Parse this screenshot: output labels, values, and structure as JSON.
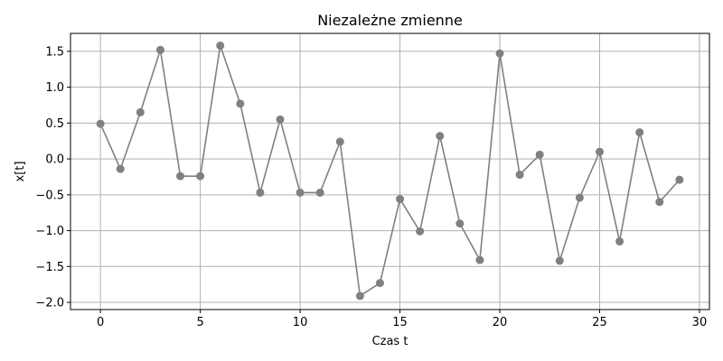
{
  "chart_data": {
    "type": "line",
    "title": "Niezależne zmienne",
    "xlabel": "Czas t",
    "ylabel": "x[t]",
    "xlim": [
      -1.5,
      30.5
    ],
    "ylim": [
      -2.1,
      1.75
    ],
    "grid": true,
    "x_ticks": [
      0,
      5,
      10,
      15,
      20,
      25,
      30
    ],
    "x_tick_labels": [
      "0",
      "5",
      "10",
      "15",
      "20",
      "25",
      "30"
    ],
    "y_ticks": [
      1.5,
      1.0,
      0.5,
      0.0,
      -0.5,
      -1.0,
      -1.5,
      -2.0
    ],
    "y_tick_labels": [
      "1.5",
      "1.0",
      "0.5",
      "0.0",
      "−0.5",
      "−1.0",
      "−1.5",
      "−2.0"
    ],
    "series": [
      {
        "color": "#808080",
        "marker": "circle",
        "x": [
          0,
          1,
          2,
          3,
          4,
          5,
          6,
          7,
          8,
          9,
          10,
          11,
          12,
          13,
          14,
          15,
          16,
          17,
          18,
          19,
          20,
          21,
          22,
          23,
          24,
          25,
          26,
          27,
          28,
          29
        ],
        "y": [
          0.49,
          -0.14,
          0.65,
          1.52,
          -0.24,
          -0.24,
          1.58,
          0.77,
          -0.47,
          0.55,
          -0.47,
          -0.47,
          0.24,
          -1.91,
          -1.73,
          -0.56,
          -1.01,
          0.32,
          -0.9,
          -1.41,
          1.47,
          -0.22,
          0.06,
          -1.42,
          -0.54,
          0.1,
          -1.15,
          0.37,
          -0.6,
          -0.29
        ]
      }
    ]
  }
}
